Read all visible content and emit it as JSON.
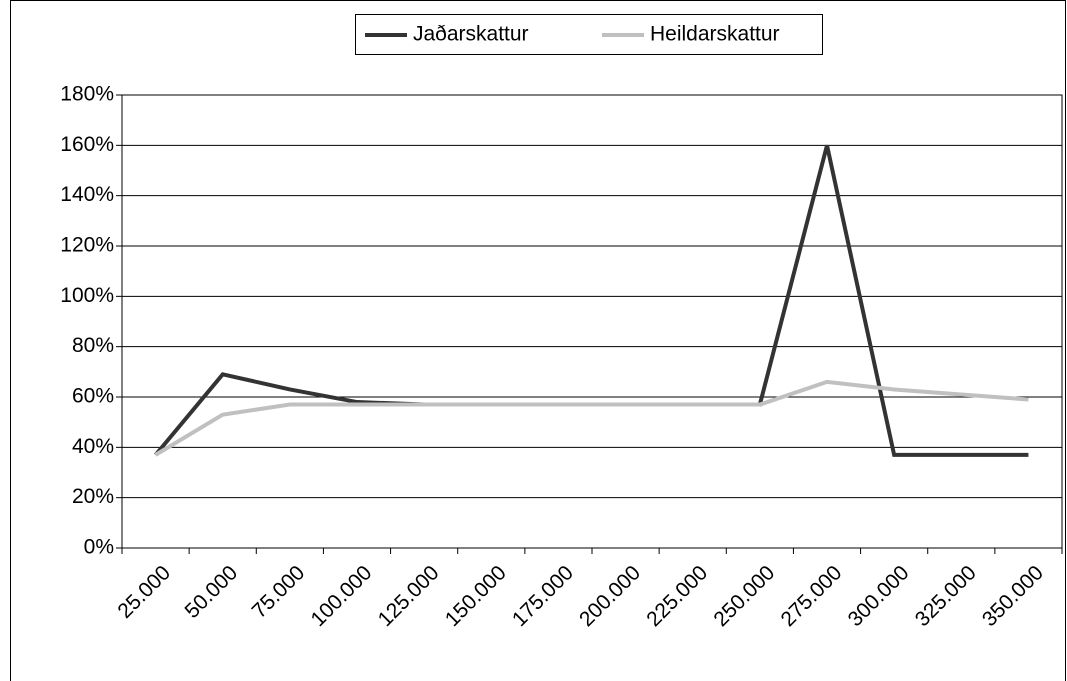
{
  "chart_data": {
    "type": "line",
    "categories": [
      "25.000",
      "50.000",
      "75.000",
      "100.000",
      "125.000",
      "150.000",
      "175.000",
      "200.000",
      "225.000",
      "250.000",
      "275.000",
      "300.000",
      "325.000",
      "350.000"
    ],
    "series": [
      {
        "name": "Jaðarskattur",
        "color": "#333333",
        "values": [
          37,
          69,
          63,
          58,
          57,
          57,
          57,
          57,
          57,
          57,
          160,
          37,
          37,
          37
        ]
      },
      {
        "name": "Heildarskattur",
        "color": "#c0c0c0",
        "values": [
          37,
          53,
          57,
          57,
          57,
          57,
          57,
          57,
          57,
          57,
          66,
          63,
          61,
          59
        ]
      }
    ],
    "ylim": [
      0,
      180
    ],
    "yticks": [
      {
        "value": 0,
        "label": "0%"
      },
      {
        "value": 20,
        "label": "20%"
      },
      {
        "value": 40,
        "label": "40%"
      },
      {
        "value": 60,
        "label": "60%"
      },
      {
        "value": 80,
        "label": "80%"
      },
      {
        "value": 100,
        "label": "100%"
      },
      {
        "value": 120,
        "label": "120%"
      },
      {
        "value": 140,
        "label": "140%"
      },
      {
        "value": 160,
        "label": "160%"
      },
      {
        "value": 180,
        "label": "180%"
      }
    ],
    "grid": true,
    "legend": "top"
  }
}
